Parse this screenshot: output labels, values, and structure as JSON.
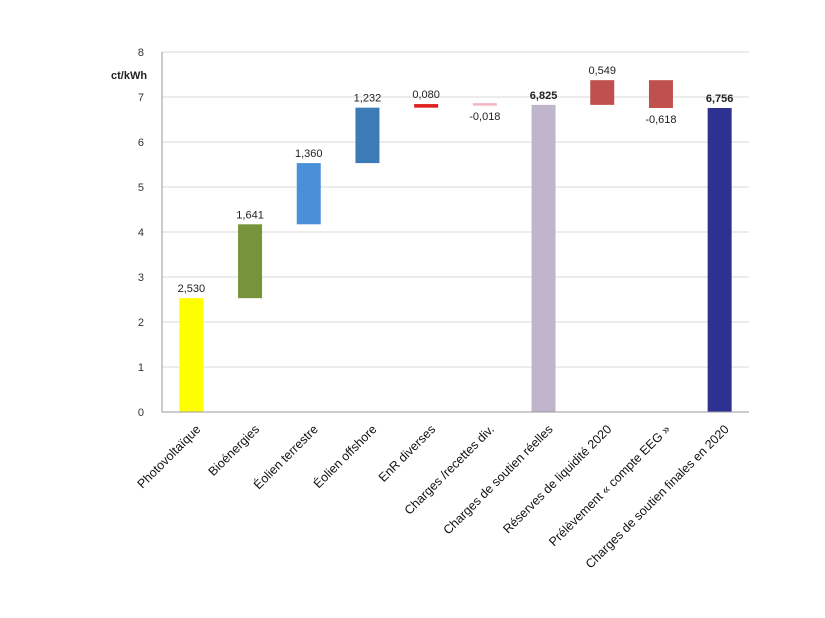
{
  "chart_data": {
    "type": "bar",
    "subtype": "waterfall",
    "ylabel": "ct/kWh",
    "ylim": [
      0,
      8
    ],
    "yticks": [
      "0",
      "1",
      "2",
      "3",
      "4",
      "5",
      "6",
      "7",
      "8"
    ],
    "grid": true,
    "categories": [
      "Photovoltaïque",
      "Bioénergies",
      "Éolien terrestre",
      "Éolien offshore",
      "EnR diverses",
      "Charges /recettes div.",
      "Charges de soutien réelles",
      "Réserves de liquidité  2020",
      "Prélèvement « compte EEG »",
      "Charges de soutien finales en 2020"
    ],
    "bars": [
      {
        "start": 0,
        "end": 2.53,
        "label": "2,530",
        "color": "#ffff00",
        "bold": false
      },
      {
        "start": 2.53,
        "end": 4.171,
        "label": "1,641",
        "color": "#77933c",
        "bold": false
      },
      {
        "start": 4.171,
        "end": 5.531,
        "label": "1,360",
        "color": "#4a90d9",
        "bold": false
      },
      {
        "start": 5.531,
        "end": 6.763,
        "label": "1,232",
        "color": "#3d7ab8",
        "bold": false
      },
      {
        "start": 6.763,
        "end": 6.843,
        "label": "0,080",
        "color": "#e02020",
        "bold": false
      },
      {
        "start": 6.843,
        "end": 6.825,
        "label": "-0,018",
        "color": "#f0b8c0",
        "bold": false
      },
      {
        "start": 0,
        "end": 6.825,
        "label": "6,825",
        "color": "#bfb6cc",
        "bold": true
      },
      {
        "start": 6.825,
        "end": 7.374,
        "label": "0,549",
        "color": "#c0504d",
        "bold": false
      },
      {
        "start": 7.374,
        "end": 6.756,
        "label": "-0,618",
        "color": "#c0504d",
        "bold": false
      },
      {
        "start": 0,
        "end": 6.756,
        "label": "6,756",
        "color": "#2e3192",
        "bold": true
      }
    ]
  }
}
